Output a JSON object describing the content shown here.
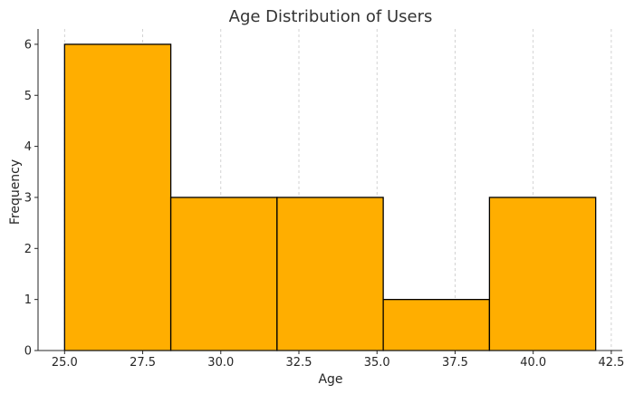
{
  "chart_data": {
    "type": "bar",
    "title": "Age Distribution of Users",
    "xlabel": "Age",
    "ylabel": "Frequency",
    "bins": [
      {
        "start": 25.0,
        "end": 28.4,
        "count": 6
      },
      {
        "start": 28.4,
        "end": 31.8,
        "count": 3
      },
      {
        "start": 31.8,
        "end": 35.2,
        "count": 3
      },
      {
        "start": 35.2,
        "end": 38.6,
        "count": 1
      },
      {
        "start": 38.6,
        "end": 42.0,
        "count": 3
      }
    ],
    "xlim": [
      24.15,
      42.85
    ],
    "ylim": [
      0,
      6.3
    ],
    "x_ticks": [
      25.0,
      27.5,
      30.0,
      32.5,
      35.0,
      37.5,
      40.0,
      42.5
    ],
    "x_tick_labels": [
      "25.0",
      "27.5",
      "30.0",
      "32.5",
      "35.0",
      "37.5",
      "40.0",
      "42.5"
    ],
    "y_ticks": [
      0,
      1,
      2,
      3,
      4,
      5,
      6
    ],
    "y_tick_labels": [
      "0",
      "1",
      "2",
      "3",
      "4",
      "5",
      "6"
    ],
    "grid": "vertical dashed",
    "bar_color": "#FFAE00",
    "edge_color": "#000000"
  }
}
